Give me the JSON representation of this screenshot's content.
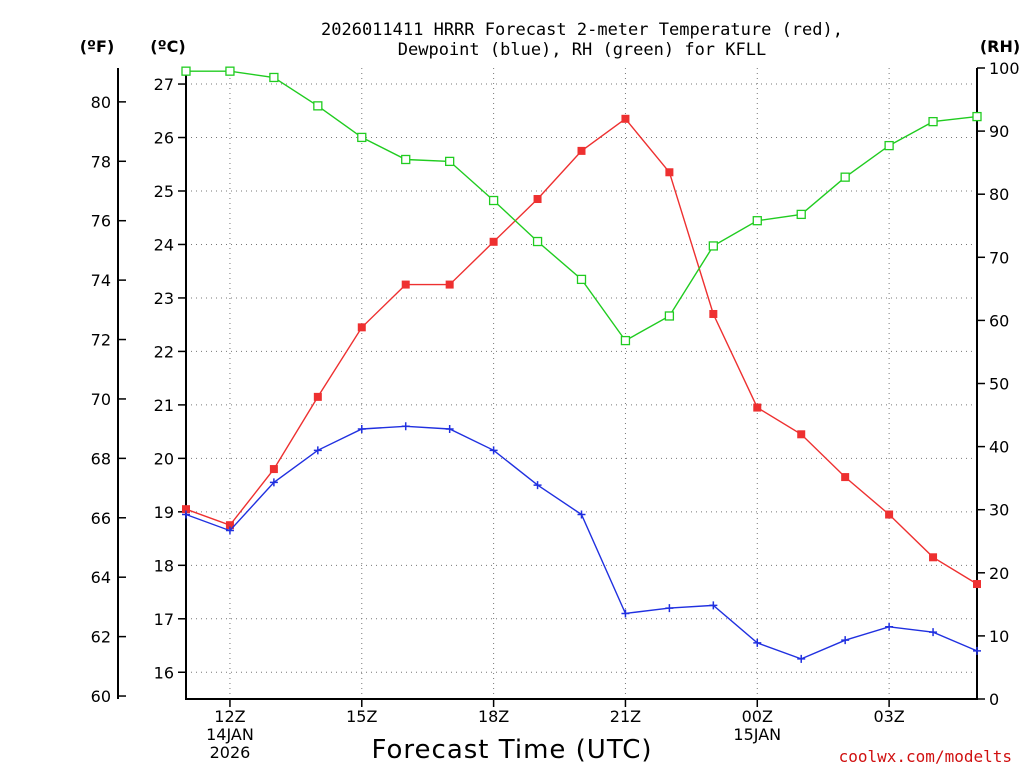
{
  "chart_data": {
    "type": "line",
    "title_line1": "2026011411 HRRR Forecast 2-meter Temperature (red),",
    "title_line2": "Dewpoint (blue), RH (green) for KFLL",
    "xlabel": "Forecast Time (UTC)",
    "credit": "coolwx.com/modelts",
    "left_unit_f": "(ºF)",
    "left_unit_c": "(ºC)",
    "right_unit": "(RH)",
    "celsius_range": [
      15.5,
      27.3
    ],
    "rh_range": [
      0,
      100
    ],
    "hours": [
      11,
      12,
      13,
      14,
      15,
      16,
      17,
      18,
      19,
      20,
      21,
      22,
      23,
      24,
      25,
      26,
      27,
      28,
      29
    ],
    "x_ticks": [
      {
        "hour": 12,
        "lines": [
          "12Z",
          "14JAN",
          "2026"
        ]
      },
      {
        "hour": 15,
        "lines": [
          "15Z"
        ]
      },
      {
        "hour": 18,
        "lines": [
          "18Z"
        ]
      },
      {
        "hour": 21,
        "lines": [
          "21Z"
        ]
      },
      {
        "hour": 24,
        "lines": [
          "00Z",
          "15JAN"
        ]
      },
      {
        "hour": 27,
        "lines": [
          "03Z"
        ]
      }
    ],
    "celsius_ticks": [
      "16",
      "17",
      "18",
      "19",
      "20",
      "21",
      "22",
      "23",
      "24",
      "25",
      "26",
      "27"
    ],
    "fahrenheit_ticks": [
      "60",
      "62",
      "64",
      "66",
      "68",
      "70",
      "72",
      "74",
      "76",
      "78",
      "80"
    ],
    "rh_ticks": [
      "0",
      "10",
      "20",
      "30",
      "40",
      "50",
      "60",
      "70",
      "80",
      "90",
      "100"
    ],
    "series": [
      {
        "name": "Temperature",
        "unit": "C",
        "color": "#ee3030",
        "marker": "filled-square",
        "values": [
          19.05,
          18.75,
          19.8,
          21.15,
          22.45,
          23.25,
          23.25,
          24.05,
          24.85,
          25.75,
          26.35,
          25.35,
          22.7,
          20.95,
          20.45,
          19.65,
          18.95,
          18.15,
          17.65
        ]
      },
      {
        "name": "Dewpoint",
        "unit": "C",
        "color": "#2030e0",
        "marker": "plus",
        "values": [
          18.95,
          18.65,
          19.55,
          20.15,
          20.55,
          20.6,
          20.55,
          20.15,
          19.5,
          18.95,
          17.1,
          17.2,
          17.25,
          16.55,
          16.25,
          16.6,
          16.85,
          16.75,
          16.4
        ]
      },
      {
        "name": "RH",
        "unit": "%",
        "color": "#20cc20",
        "marker": "open-square",
        "values": [
          99.5,
          99.5,
          98.5,
          94.0,
          89.0,
          85.5,
          85.2,
          79.0,
          72.5,
          66.5,
          56.8,
          60.7,
          71.8,
          75.8,
          76.8,
          82.7,
          87.7,
          91.5,
          92.3
        ]
      }
    ]
  }
}
